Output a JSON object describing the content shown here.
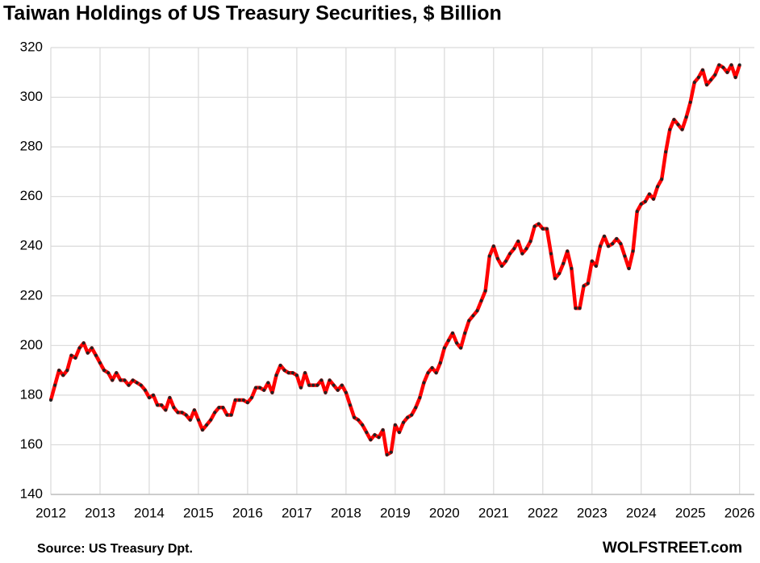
{
  "chart_data": {
    "type": "line",
    "title": "Taiwan Holdings of US Treasury Securities, $ Billion",
    "source": "Source: US Treasury  Dpt.",
    "credit": "WOLFSTREET.com",
    "xlim": [
      2012,
      2026.3
    ],
    "xticks": [
      2012,
      2013,
      2014,
      2015,
      2016,
      2017,
      2018,
      2019,
      2020,
      2021,
      2022,
      2023,
      2024,
      2025,
      2026
    ],
    "ylim": [
      140,
      320
    ],
    "yticks": [
      140,
      160,
      180,
      200,
      220,
      240,
      260,
      280,
      300,
      320
    ],
    "grid": true,
    "x": [
      2012,
      2012.083,
      2012.167,
      2012.25,
      2012.333,
      2012.417,
      2012.5,
      2012.583,
      2012.667,
      2012.75,
      2012.833,
      2012.917,
      2013,
      2013.083,
      2013.167,
      2013.25,
      2013.333,
      2013.417,
      2013.5,
      2013.583,
      2013.667,
      2013.75,
      2013.833,
      2013.917,
      2014,
      2014.083,
      2014.167,
      2014.25,
      2014.333,
      2014.417,
      2014.5,
      2014.583,
      2014.667,
      2014.75,
      2014.833,
      2014.917,
      2015,
      2015.083,
      2015.167,
      2015.25,
      2015.333,
      2015.417,
      2015.5,
      2015.583,
      2015.667,
      2015.75,
      2015.833,
      2015.917,
      2016,
      2016.083,
      2016.167,
      2016.25,
      2016.333,
      2016.417,
      2016.5,
      2016.583,
      2016.667,
      2016.75,
      2016.833,
      2016.917,
      2017,
      2017.083,
      2017.167,
      2017.25,
      2017.333,
      2017.417,
      2017.5,
      2017.583,
      2017.667,
      2017.75,
      2017.833,
      2017.917,
      2018,
      2018.083,
      2018.167,
      2018.25,
      2018.333,
      2018.417,
      2018.5,
      2018.583,
      2018.667,
      2018.75,
      2018.833,
      2018.917,
      2019,
      2019.083,
      2019.167,
      2019.25,
      2019.333,
      2019.417,
      2019.5,
      2019.583,
      2019.667,
      2019.75,
      2019.833,
      2019.917,
      2020,
      2020.083,
      2020.167,
      2020.25,
      2020.333,
      2020.417,
      2020.5,
      2020.583,
      2020.667,
      2020.75,
      2020.833,
      2020.917,
      2021,
      2021.083,
      2021.167,
      2021.25,
      2021.333,
      2021.417,
      2021.5,
      2021.583,
      2021.667,
      2021.75,
      2021.833,
      2021.917,
      2022,
      2022.083,
      2022.167,
      2022.25,
      2022.333,
      2022.417,
      2022.5,
      2022.583,
      2022.667,
      2022.75,
      2022.833,
      2022.917,
      2023,
      2023.083,
      2023.167,
      2023.25,
      2023.333,
      2023.417,
      2023.5,
      2023.583,
      2023.667,
      2023.75,
      2023.833,
      2023.917,
      2024,
      2024.083,
      2024.167,
      2024.25,
      2024.333,
      2024.417,
      2024.5,
      2024.583,
      2024.667,
      2024.75,
      2024.833,
      2024.917,
      2025,
      2025.083,
      2025.167,
      2025.25,
      2025.333,
      2025.417,
      2025.5,
      2025.583,
      2025.667,
      2025.75,
      2025.833,
      2025.917,
      2026
    ],
    "series": [
      {
        "color": "#ff0000",
        "marker_color": "#222222",
        "values": [
          178,
          184,
          190,
          188,
          190,
          196,
          195,
          199,
          201,
          197,
          199,
          196,
          193,
          190,
          189,
          186,
          189,
          186,
          186,
          184,
          186,
          185,
          184,
          182,
          179,
          180,
          176,
          176,
          174,
          179,
          175,
          173,
          173,
          172,
          170,
          174,
          170,
          166,
          168,
          170,
          173,
          175,
          175,
          172,
          172,
          178,
          178,
          178,
          177,
          179,
          183,
          183,
          182,
          185,
          181,
          188,
          192,
          190,
          189,
          189,
          188,
          183,
          189,
          184,
          184,
          184,
          186,
          181,
          186,
          184,
          182,
          184,
          181,
          176,
          171,
          170,
          168,
          165,
          162,
          164,
          163,
          166,
          156,
          157,
          168,
          165,
          169,
          171,
          172,
          175,
          179,
          185,
          189,
          191,
          189,
          193,
          199,
          202,
          205,
          201,
          199,
          205,
          210,
          212,
          214,
          218,
          222,
          236,
          240,
          235,
          232,
          234,
          237,
          239,
          242,
          237,
          239,
          242,
          248,
          249,
          247,
          247,
          237,
          227,
          229,
          233,
          238,
          231,
          215,
          215,
          224,
          225,
          234,
          232,
          240,
          244,
          240,
          241,
          243,
          241,
          236,
          231,
          238,
          254,
          257,
          258,
          261,
          259,
          264,
          267,
          278,
          287,
          291,
          289,
          287,
          292,
          298,
          306,
          308,
          311,
          305,
          307,
          309,
          313,
          312,
          310,
          313,
          308,
          313
        ]
      }
    ]
  }
}
